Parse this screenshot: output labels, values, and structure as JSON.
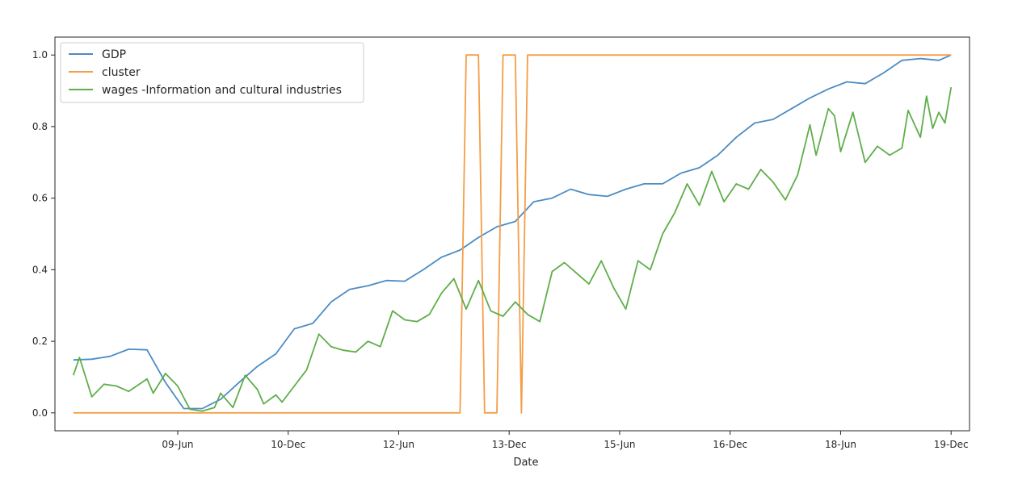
{
  "chart_data": {
    "type": "line",
    "title": "",
    "xlabel": "Date",
    "ylabel": "",
    "ylim": [
      -0.05,
      1.05
    ],
    "yticks": [
      0.0,
      0.2,
      0.4,
      0.6,
      0.8,
      1.0
    ],
    "ytick_labels": [
      "0.0",
      "0.2",
      "0.4",
      "0.6",
      "0.8",
      "1.0"
    ],
    "xticks": [
      {
        "x": "2009-06",
        "label": "09-Jun"
      },
      {
        "x": "2010-12",
        "label": "10-Dec"
      },
      {
        "x": "2012-06",
        "label": "12-Jun"
      },
      {
        "x": "2013-12",
        "label": "13-Dec"
      },
      {
        "x": "2015-06",
        "label": "15-Jun"
      },
      {
        "x": "2016-12",
        "label": "16-Dec"
      },
      {
        "x": "2018-06",
        "label": "18-Jun"
      },
      {
        "x": "2019-12",
        "label": "19-Dec"
      }
    ],
    "xlim": [
      "2007-10",
      "2020-03"
    ],
    "grid": false,
    "legend": "top-left",
    "series": [
      {
        "name": "GDP",
        "color": "#4c8cc4",
        "points": [
          [
            "2008-01",
            0.148
          ],
          [
            "2008-04",
            0.15
          ],
          [
            "2008-07",
            0.158
          ],
          [
            "2008-10",
            0.178
          ],
          [
            "2009-01",
            0.176
          ],
          [
            "2009-04",
            0.085
          ],
          [
            "2009-07",
            0.012
          ],
          [
            "2009-10",
            0.012
          ],
          [
            "2010-01",
            0.038
          ],
          [
            "2010-04",
            0.085
          ],
          [
            "2010-07",
            0.13
          ],
          [
            "2010-10",
            0.165
          ],
          [
            "2011-01",
            0.235
          ],
          [
            "2011-04",
            0.25
          ],
          [
            "2011-07",
            0.31
          ],
          [
            "2011-10",
            0.345
          ],
          [
            "2012-01",
            0.355
          ],
          [
            "2012-04",
            0.37
          ],
          [
            "2012-07",
            0.368
          ],
          [
            "2012-10",
            0.4
          ],
          [
            "2013-01",
            0.435
          ],
          [
            "2013-04",
            0.455
          ],
          [
            "2013-07",
            0.49
          ],
          [
            "2013-10",
            0.52
          ],
          [
            "2014-01",
            0.535
          ],
          [
            "2014-04",
            0.59
          ],
          [
            "2014-07",
            0.6
          ],
          [
            "2014-10",
            0.625
          ],
          [
            "2015-01",
            0.61
          ],
          [
            "2015-04",
            0.605
          ],
          [
            "2015-07",
            0.625
          ],
          [
            "2015-10",
            0.64
          ],
          [
            "2016-01",
            0.64
          ],
          [
            "2016-04",
            0.67
          ],
          [
            "2016-07",
            0.685
          ],
          [
            "2016-10",
            0.72
          ],
          [
            "2017-01",
            0.77
          ],
          [
            "2017-04",
            0.81
          ],
          [
            "2017-07",
            0.82
          ],
          [
            "2017-10",
            0.85
          ],
          [
            "2018-01",
            0.88
          ],
          [
            "2018-04",
            0.905
          ],
          [
            "2018-07",
            0.925
          ],
          [
            "2018-10",
            0.92
          ],
          [
            "2019-01",
            0.95
          ],
          [
            "2019-04",
            0.985
          ],
          [
            "2019-07",
            0.99
          ],
          [
            "2019-10",
            0.985
          ],
          [
            "2019-12",
            1.0
          ]
        ]
      },
      {
        "name": "cluster",
        "color": "#f59d47",
        "points": [
          [
            "2008-01",
            0.0
          ],
          [
            "2013-04",
            0.0
          ],
          [
            "2013-05",
            1.0
          ],
          [
            "2013-07",
            1.0
          ],
          [
            "2013-08",
            0.0
          ],
          [
            "2013-10",
            0.0
          ],
          [
            "2013-11",
            1.0
          ],
          [
            "2014-01",
            1.0
          ],
          [
            "2014-02",
            0.0
          ],
          [
            "2014-03",
            1.0
          ],
          [
            "2019-12",
            1.0
          ]
        ]
      },
      {
        "name": "wages -Information and cultural industries",
        "color": "#5fae4a",
        "points": [
          [
            "2008-01",
            0.105
          ],
          [
            "2008-02",
            0.155
          ],
          [
            "2008-04",
            0.045
          ],
          [
            "2008-06",
            0.08
          ],
          [
            "2008-08",
            0.075
          ],
          [
            "2008-10",
            0.06
          ],
          [
            "2009-01",
            0.095
          ],
          [
            "2009-02",
            0.055
          ],
          [
            "2009-04",
            0.11
          ],
          [
            "2009-06",
            0.075
          ],
          [
            "2009-08",
            0.01
          ],
          [
            "2009-10",
            0.005
          ],
          [
            "2009-12",
            0.015
          ],
          [
            "2010-01",
            0.055
          ],
          [
            "2010-03",
            0.015
          ],
          [
            "2010-05",
            0.105
          ],
          [
            "2010-07",
            0.065
          ],
          [
            "2010-08",
            0.025
          ],
          [
            "2010-10",
            0.05
          ],
          [
            "2010-11",
            0.03
          ],
          [
            "2011-01",
            0.075
          ],
          [
            "2011-03",
            0.12
          ],
          [
            "2011-05",
            0.22
          ],
          [
            "2011-07",
            0.185
          ],
          [
            "2011-09",
            0.175
          ],
          [
            "2011-11",
            0.17
          ],
          [
            "2012-01",
            0.2
          ],
          [
            "2012-03",
            0.185
          ],
          [
            "2012-05",
            0.285
          ],
          [
            "2012-07",
            0.26
          ],
          [
            "2012-09",
            0.255
          ],
          [
            "2012-11",
            0.275
          ],
          [
            "2013-01",
            0.335
          ],
          [
            "2013-03",
            0.375
          ],
          [
            "2013-05",
            0.29
          ],
          [
            "2013-07",
            0.37
          ],
          [
            "2013-09",
            0.285
          ],
          [
            "2013-11",
            0.27
          ],
          [
            "2014-01",
            0.31
          ],
          [
            "2014-03",
            0.275
          ],
          [
            "2014-05",
            0.255
          ],
          [
            "2014-07",
            0.395
          ],
          [
            "2014-09",
            0.42
          ],
          [
            "2014-11",
            0.39
          ],
          [
            "2015-01",
            0.36
          ],
          [
            "2015-03",
            0.425
          ],
          [
            "2015-05",
            0.35
          ],
          [
            "2015-07",
            0.29
          ],
          [
            "2015-09",
            0.425
          ],
          [
            "2015-11",
            0.4
          ],
          [
            "2016-01",
            0.5
          ],
          [
            "2016-03",
            0.56
          ],
          [
            "2016-05",
            0.64
          ],
          [
            "2016-07",
            0.58
          ],
          [
            "2016-09",
            0.675
          ],
          [
            "2016-11",
            0.59
          ],
          [
            "2017-01",
            0.64
          ],
          [
            "2017-03",
            0.625
          ],
          [
            "2017-05",
            0.68
          ],
          [
            "2017-07",
            0.645
          ],
          [
            "2017-09",
            0.595
          ],
          [
            "2017-11",
            0.665
          ],
          [
            "2018-01",
            0.805
          ],
          [
            "2018-02",
            0.72
          ],
          [
            "2018-04",
            0.85
          ],
          [
            "2018-05",
            0.83
          ],
          [
            "2018-06",
            0.73
          ],
          [
            "2018-08",
            0.84
          ],
          [
            "2018-10",
            0.7
          ],
          [
            "2018-12",
            0.745
          ],
          [
            "2019-02",
            0.72
          ],
          [
            "2019-04",
            0.74
          ],
          [
            "2019-05",
            0.845
          ],
          [
            "2019-07",
            0.77
          ],
          [
            "2019-08",
            0.885
          ],
          [
            "2019-09",
            0.795
          ],
          [
            "2019-10",
            0.84
          ],
          [
            "2019-11",
            0.81
          ],
          [
            "2019-12",
            0.91
          ]
        ]
      }
    ]
  }
}
